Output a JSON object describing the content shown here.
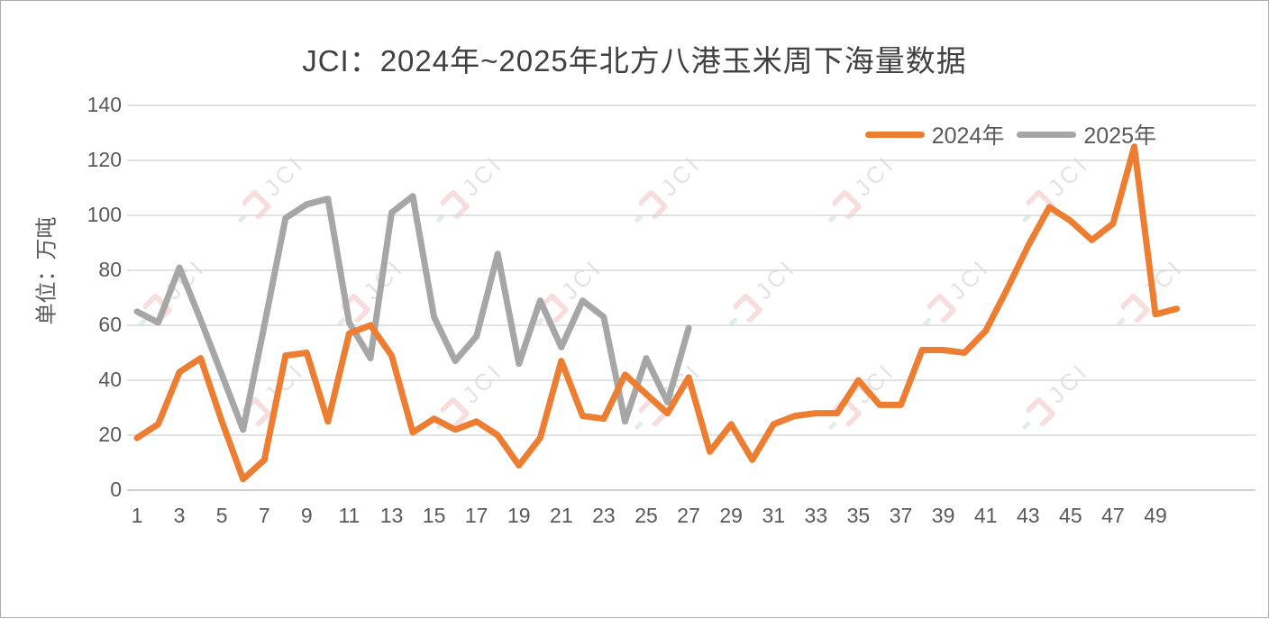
{
  "title": "JCI：2024年~2025年北方八港玉米周下海量数据",
  "y_axis_title": "单位：万吨",
  "legend": [
    {
      "label": "2024年",
      "color": "#ED7D31"
    },
    {
      "label": "2025年",
      "color": "#A6A6A6"
    }
  ],
  "watermark_text": "JCI",
  "colors": {
    "series_2024": "#ED7D31",
    "series_2025": "#A6A6A6",
    "gridline": "#D9D9D9",
    "axis_line": "#BFBFBF",
    "title_text": "#404040",
    "tick_text": "#595959"
  },
  "chart_data": {
    "type": "line",
    "x": [
      1,
      2,
      3,
      4,
      5,
      6,
      7,
      8,
      9,
      10,
      11,
      12,
      13,
      14,
      15,
      16,
      17,
      18,
      19,
      20,
      21,
      22,
      23,
      24,
      25,
      26,
      27,
      28,
      29,
      30,
      31,
      32,
      33,
      34,
      35,
      36,
      37,
      38,
      39,
      40,
      41,
      42,
      43,
      44,
      45,
      46,
      47,
      48,
      49,
      50
    ],
    "x_tick_labels": [
      "1",
      "3",
      "5",
      "7",
      "9",
      "11",
      "13",
      "15",
      "17",
      "19",
      "21",
      "23",
      "25",
      "27",
      "29",
      "31",
      "33",
      "35",
      "37",
      "39",
      "41",
      "43",
      "45",
      "47",
      "49"
    ],
    "ylim": [
      0,
      140
    ],
    "y_ticks": [
      0,
      20,
      40,
      60,
      80,
      100,
      120,
      140
    ],
    "grid": true,
    "legend_position": "top-right",
    "title": "JCI：2024年~2025年北方八港玉米周下海量数据",
    "ylabel": "单位：万吨",
    "series": [
      {
        "name": "2024年",
        "color": "#ED7D31",
        "values": [
          19,
          24,
          43,
          48,
          25,
          4,
          11,
          49,
          50,
          25,
          57,
          60,
          49,
          21,
          26,
          22,
          25,
          20,
          9,
          19,
          47,
          27,
          26,
          42,
          35,
          28,
          41,
          14,
          24,
          11,
          24,
          27,
          28,
          28,
          40,
          31,
          31,
          51,
          51,
          50,
          58,
          73,
          89,
          103,
          98,
          91,
          97,
          125,
          64,
          66
        ]
      },
      {
        "name": "2025年",
        "color": "#A6A6A6",
        "values": [
          65,
          61,
          81,
          62,
          42,
          22,
          60,
          99,
          104,
          106,
          61,
          48,
          101,
          107,
          63,
          47,
          56,
          86,
          46,
          69,
          52,
          69,
          63,
          25,
          48,
          32,
          59
        ]
      }
    ]
  }
}
